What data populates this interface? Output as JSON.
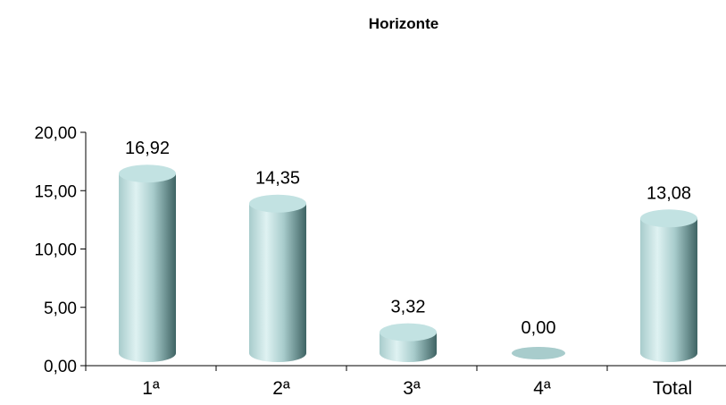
{
  "chart_data": {
    "type": "bar",
    "title": "Horizonte",
    "categories": [
      "1ª",
      "2ª",
      "3ª",
      "4ª",
      "Total"
    ],
    "values": [
      16.92,
      14.35,
      3.32,
      0.0,
      13.08
    ],
    "data_labels": [
      "16,92",
      "14,35",
      "3,32",
      "0,00",
      "13,08"
    ],
    "ylim": [
      0,
      20
    ],
    "yticks": [
      0,
      5,
      10,
      15,
      20
    ],
    "ytick_labels": [
      "0,00",
      "5,00",
      "10,00",
      "15,00",
      "20,00"
    ],
    "grid": false,
    "legend": "none",
    "bar_shape": "cylinder",
    "colors": {
      "bar_light": "#dff2f2",
      "bar_mid": "#a8cccc",
      "bar_dark": "#3f6464",
      "bar_top": "#c2e2e2",
      "axis": "#000000"
    }
  }
}
